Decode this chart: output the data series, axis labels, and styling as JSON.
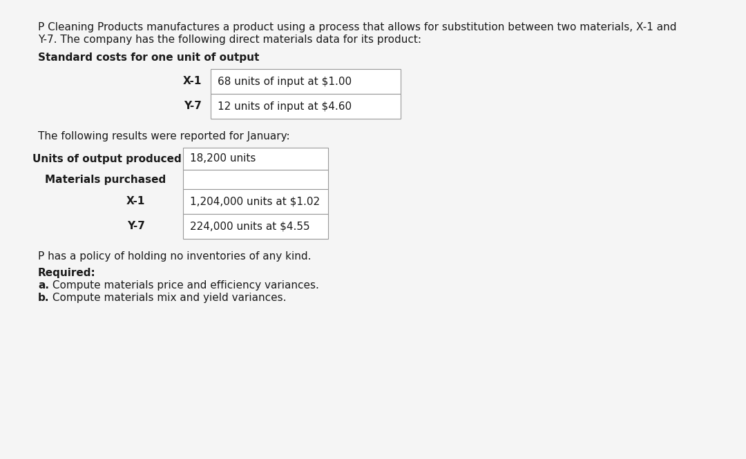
{
  "bg_color": "#f5f5f5",
  "intro_text_line1": "P Cleaning Products manufactures a product using a process that allows for substitution between two materials, X-1 and",
  "intro_text_line2": "Y-7. The company has the following direct materials data for its product:",
  "section1_header": "Standard costs for one unit of output",
  "std_rows": [
    {
      "label": "X-1",
      "value": "68 units of input at $1.00"
    },
    {
      "label": "Y-7",
      "value": "12 units of input at $4.60"
    }
  ],
  "jan_intro": "The following results were reported for January:",
  "jan_rows": [
    {
      "label": "Units of output produced",
      "bold": true,
      "indent": 0,
      "value": "18,200 units"
    },
    {
      "label": "Materials purchased",
      "bold": true,
      "indent": 1,
      "value": ""
    },
    {
      "label": "X-1",
      "bold": true,
      "indent": 2,
      "value": "1,204,000 units at $1.02"
    },
    {
      "label": "Y-7",
      "bold": true,
      "indent": 2,
      "value": "224,000 units at $4.55"
    }
  ],
  "policy_text": "P has a policy of holding no inventories of any kind.",
  "required_header": "Required:",
  "required_items": [
    {
      "bold": "a.",
      "rest": " Compute materials price and efficiency variances."
    },
    {
      "bold": "b.",
      "rest": " Compute materials mix and yield variances."
    }
  ],
  "font_size": 11.0,
  "text_color": "#1a1a1a",
  "border_color": "#999999"
}
